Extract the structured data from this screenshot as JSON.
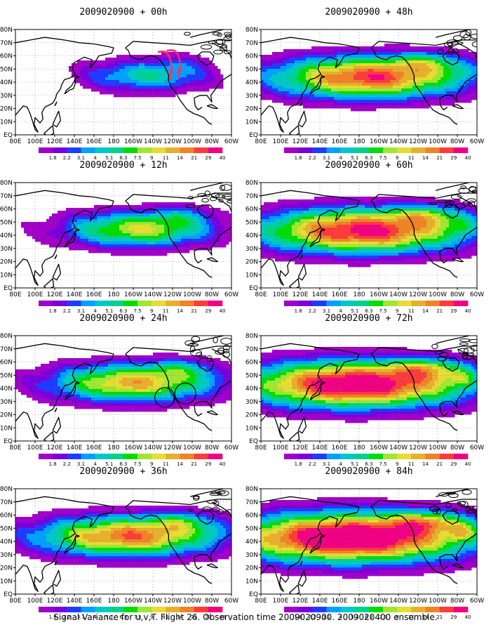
{
  "figure": {
    "caption": "Signal Variance for u,v,T. Flight 26. Observation time 2009020900. 2009020400 ensemble."
  },
  "chart_data": {
    "type": "heatmap",
    "region": {
      "lon_range": [
        "80E",
        "60W"
      ],
      "lat_range": [
        "EQ",
        "80N"
      ]
    },
    "x_ticks": [
      "80E",
      "100E",
      "120E",
      "140E",
      "160E",
      "180",
      "160W",
      "140W",
      "120W",
      "100W",
      "80W",
      "60W"
    ],
    "y_ticks": [
      "EQ",
      "10N",
      "20N",
      "30N",
      "40N",
      "50N",
      "60N",
      "70N",
      "80N"
    ],
    "grid": true,
    "colorbar": {
      "levels": [
        "1.8",
        "2.2",
        "3.1",
        "4",
        "5.1",
        "6.3",
        "7.5",
        "9",
        "11",
        "14",
        "21",
        "29",
        "40"
      ],
      "colors": [
        "#a000c8",
        "#7800dc",
        "#1e3cff",
        "#00a0ff",
        "#00c8c8",
        "#00d28c",
        "#00dc00",
        "#a0e632",
        "#e6dc32",
        "#e6af2d",
        "#f08228",
        "#fa3c3c",
        "#f00082"
      ]
    },
    "panels": [
      {
        "title": "2009020900 + 00h",
        "lead_hours": 0,
        "spread": 0.55,
        "intensity": 0.9,
        "marker": "dots"
      },
      {
        "title": "2009020900 + 12h",
        "lead_hours": 12,
        "spread": 0.75,
        "intensity": 1.6,
        "marker": "none"
      },
      {
        "title": "2009020900 + 24h",
        "lead_hours": 24,
        "spread": 0.9,
        "intensity": 1.9,
        "marker": "circles"
      },
      {
        "title": "2009020900 + 36h",
        "lead_hours": 36,
        "spread": 1.05,
        "intensity": 2.2,
        "marker": "none"
      },
      {
        "title": "2009020900 + 48h",
        "lead_hours": 48,
        "spread": 1.15,
        "intensity": 2.4,
        "marker": "none"
      },
      {
        "title": "2009020900 + 60h",
        "lead_hours": 60,
        "spread": 1.3,
        "intensity": 2.6,
        "marker": "none"
      },
      {
        "title": "2009020900 + 72h",
        "lead_hours": 72,
        "spread": 1.45,
        "intensity": 2.85,
        "marker": "none"
      },
      {
        "title": "2009020900 + 84h",
        "lead_hours": 84,
        "spread": 1.6,
        "intensity": 3.1,
        "marker": "none"
      }
    ]
  }
}
